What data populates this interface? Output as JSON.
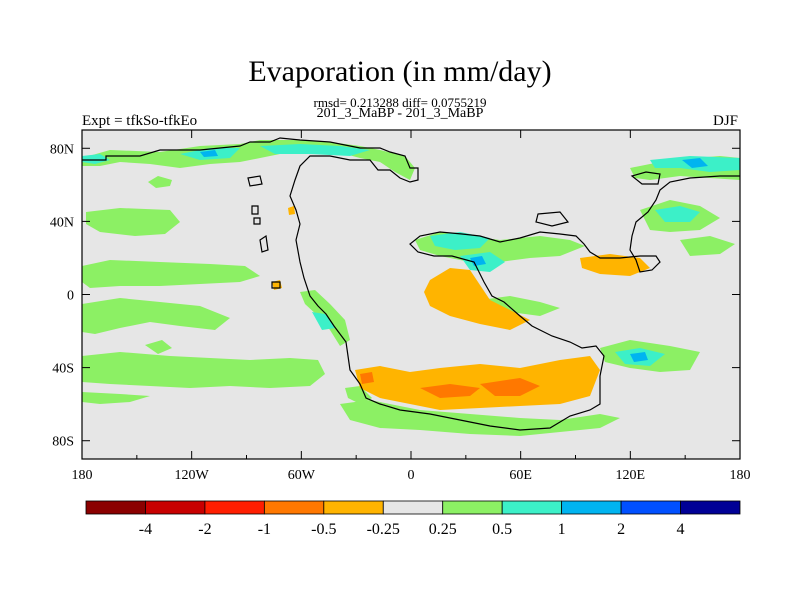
{
  "chart_data": {
    "type": "heatmap",
    "title": "Evaporation (in mm/day)",
    "subtitle": "rmsd= 0.213288 diff= 0.0755219",
    "comparison": "201_3_MaBP - 201_3_MaBP",
    "left_label": "Expt = tfkSo-tfkEo",
    "right_label": "DJF",
    "x_ticks": [
      "180",
      "120W",
      "60W",
      "0",
      "60E",
      "120E",
      "180"
    ],
    "x_values": [
      -180,
      -120,
      -60,
      0,
      60,
      120,
      180
    ],
    "y_ticks": [
      "80N",
      "40N",
      "0",
      "40S",
      "80S"
    ],
    "y_values": [
      80,
      40,
      0,
      -40,
      -80
    ],
    "xlim": [
      -180,
      180
    ],
    "ylim": [
      -90,
      90
    ],
    "background_color": "#e6e6e6",
    "colorbar": {
      "colors": [
        "#8b0000",
        "#c80000",
        "#ff1e00",
        "#ff7800",
        "#ffb400",
        "#e6e6e6",
        "#8cf064",
        "#3cf0c8",
        "#00b4f0",
        "#0050ff",
        "#000096"
      ],
      "labels": [
        "-4",
        "-2",
        "-1",
        "-0.5",
        "-0.25",
        "0.25",
        "0.5",
        "1",
        "2",
        "4"
      ]
    }
  }
}
